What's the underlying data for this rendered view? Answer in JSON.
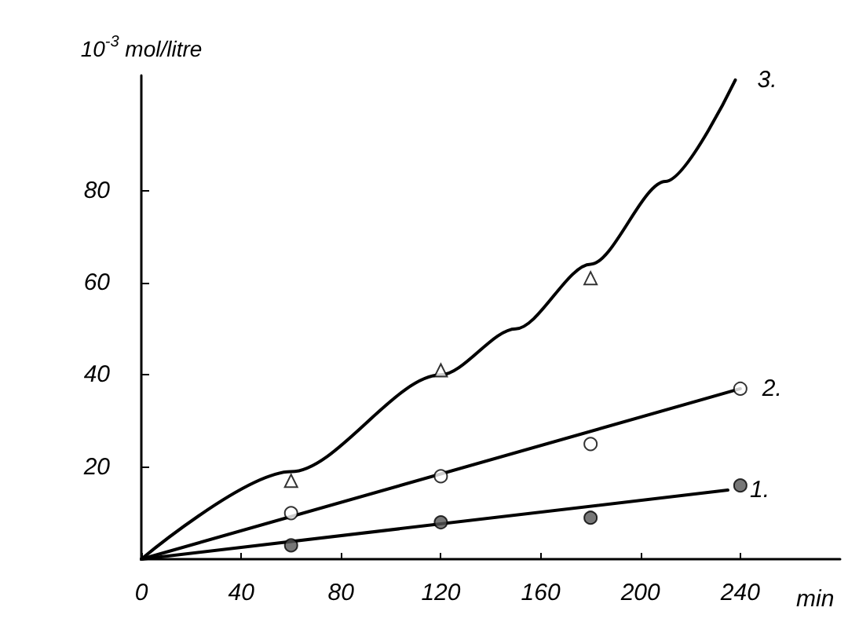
{
  "chart_data": {
    "type": "scatter",
    "xlabel": "min",
    "ylabel": "10$^{-3}$ mol/litre",
    "xlim": [
      0,
      280
    ],
    "ylim": [
      0,
      105
    ],
    "xticks": [
      0,
      40,
      80,
      120,
      160,
      200,
      240
    ],
    "yticks": [
      20,
      40,
      60,
      80
    ],
    "grid": false,
    "legend": false,
    "series": [
      {
        "marker": "circle",
        "color": "#555555",
        "x": [
          60,
          120,
          180,
          240
        ],
        "values": [
          3,
          8,
          9,
          16
        ]
      },
      {
        "marker": "circle",
        "color": "#ffffff",
        "x": [
          60,
          120,
          180,
          240
        ],
        "values": [
          10,
          18,
          25,
          37
        ]
      },
      {
        "marker": "triangle",
        "color": "#ffffff",
        "x": [
          60,
          120,
          180
        ],
        "values": [
          17,
          41,
          61
        ]
      },
      {
        "type": "line",
        "name": "1.",
        "color": "#000000",
        "marker": "none",
        "x": [
          0,
          235
        ],
        "values": [
          0,
          15
        ]
      },
      {
        "type": "line",
        "name": "2.",
        "color": "#000000",
        "marker": "none",
        "x": [
          0,
          240
        ],
        "values": [
          0,
          37
        ]
      },
      {
        "type": "line",
        "name": "3.",
        "color": "#000000",
        "marker": "none",
        "x": [
          0,
          60,
          120,
          150,
          180,
          210,
          238
        ],
        "values": [
          0,
          19,
          40,
          50,
          64,
          82,
          104
        ]
      }
    ]
  }
}
